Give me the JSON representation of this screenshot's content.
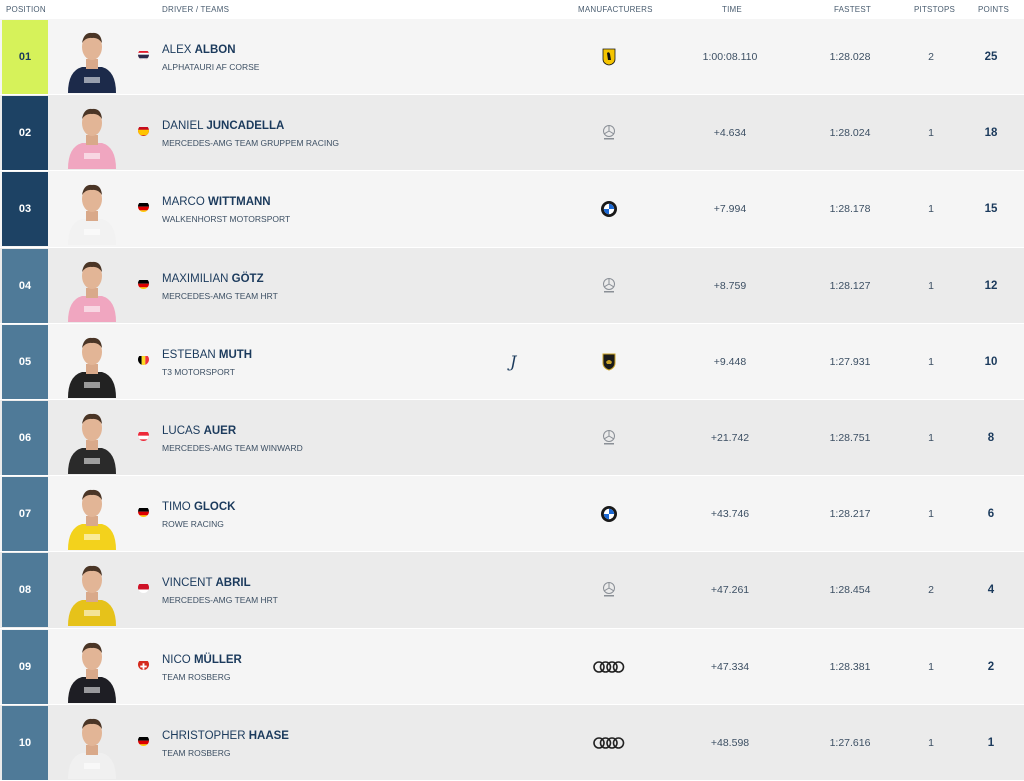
{
  "header": {
    "position": "POSITION",
    "driver_teams": "DRIVER / TEAMS",
    "manufacturers": "MANUFACTURERS",
    "time": "TIME",
    "fastest": "FASTEST",
    "pitstops": "PITSTOPS",
    "points": "POINTS"
  },
  "colors": {
    "leader": "#d6f25a",
    "podium": "#1d4264",
    "field": "#4f7a98",
    "text_dark": "#1b3a5c"
  },
  "rows": [
    {
      "pos": "01",
      "first": "ALEX",
      "last": "ALBON",
      "team": "ALPHATAURI AF CORSE",
      "flag": "thailand-flag",
      "manufacturer": "ferrari-logo",
      "time": "1:00:08.110",
      "fastest": "1:28.028",
      "pitstops": "2",
      "points": "25",
      "suit": "#1c2a4a",
      "rookie": ""
    },
    {
      "pos": "02",
      "first": "DANIEL",
      "last": "JUNCADELLA",
      "team": "MERCEDES-AMG TEAM GRUPPEM RACING",
      "flag": "spain-flag",
      "manufacturer": "mercedes-amg-logo",
      "time": "+4.634",
      "fastest": "1:28.024",
      "pitstops": "1",
      "points": "18",
      "suit": "#f0a6c0",
      "rookie": ""
    },
    {
      "pos": "03",
      "first": "MARCO",
      "last": "WITTMANN",
      "team": "WALKENHORST MOTORSPORT",
      "flag": "germany-flag",
      "manufacturer": "bmw-logo",
      "time": "+7.994",
      "fastest": "1:28.178",
      "pitstops": "1",
      "points": "15",
      "suit": "#f2f2f2",
      "rookie": ""
    },
    {
      "pos": "04",
      "first": "MAXIMILIAN",
      "last": "GÖTZ",
      "team": "MERCEDES-AMG TEAM HRT",
      "flag": "germany-flag",
      "manufacturer": "mercedes-amg-logo",
      "time": "+8.759",
      "fastest": "1:28.127",
      "pitstops": "1",
      "points": "12",
      "suit": "#f0a6c0",
      "rookie": ""
    },
    {
      "pos": "05",
      "first": "ESTEBAN",
      "last": "MUTH",
      "team": "T3 MOTORSPORT",
      "flag": "belgium-flag",
      "manufacturer": "lamborghini-logo",
      "time": "+9.448",
      "fastest": "1:27.931",
      "pitstops": "1",
      "points": "10",
      "suit": "#222222",
      "rookie": "J"
    },
    {
      "pos": "06",
      "first": "LUCAS",
      "last": "AUER",
      "team": "MERCEDES-AMG TEAM WINWARD",
      "flag": "austria-flag",
      "manufacturer": "mercedes-amg-logo",
      "time": "+21.742",
      "fastest": "1:28.751",
      "pitstops": "1",
      "points": "8",
      "suit": "#2a2a2a",
      "rookie": ""
    },
    {
      "pos": "07",
      "first": "TIMO",
      "last": "GLOCK",
      "team": "ROWE RACING",
      "flag": "germany-flag",
      "manufacturer": "bmw-logo",
      "time": "+43.746",
      "fastest": "1:28.217",
      "pitstops": "1",
      "points": "6",
      "suit": "#f3d21c",
      "rookie": ""
    },
    {
      "pos": "08",
      "first": "VINCENT",
      "last": "ABRIL",
      "team": "MERCEDES-AMG TEAM HRT",
      "flag": "monaco-flag",
      "manufacturer": "mercedes-amg-logo",
      "time": "+47.261",
      "fastest": "1:28.454",
      "pitstops": "2",
      "points": "4",
      "suit": "#e6c21a",
      "rookie": ""
    },
    {
      "pos": "09",
      "first": "NICO",
      "last": "MÜLLER",
      "team": "TEAM ROSBERG",
      "flag": "switzerland-flag",
      "manufacturer": "audi-logo",
      "time": "+47.334",
      "fastest": "1:28.381",
      "pitstops": "1",
      "points": "2",
      "suit": "#1e1e24",
      "rookie": ""
    },
    {
      "pos": "10",
      "first": "CHRISTOPHER",
      "last": "HAASE",
      "team": "TEAM ROSBERG",
      "flag": "germany-flag",
      "manufacturer": "audi-logo",
      "time": "+48.598",
      "fastest": "1:27.616",
      "pitstops": "1",
      "points": "1",
      "suit": "#f0f0f0",
      "rookie": ""
    }
  ]
}
